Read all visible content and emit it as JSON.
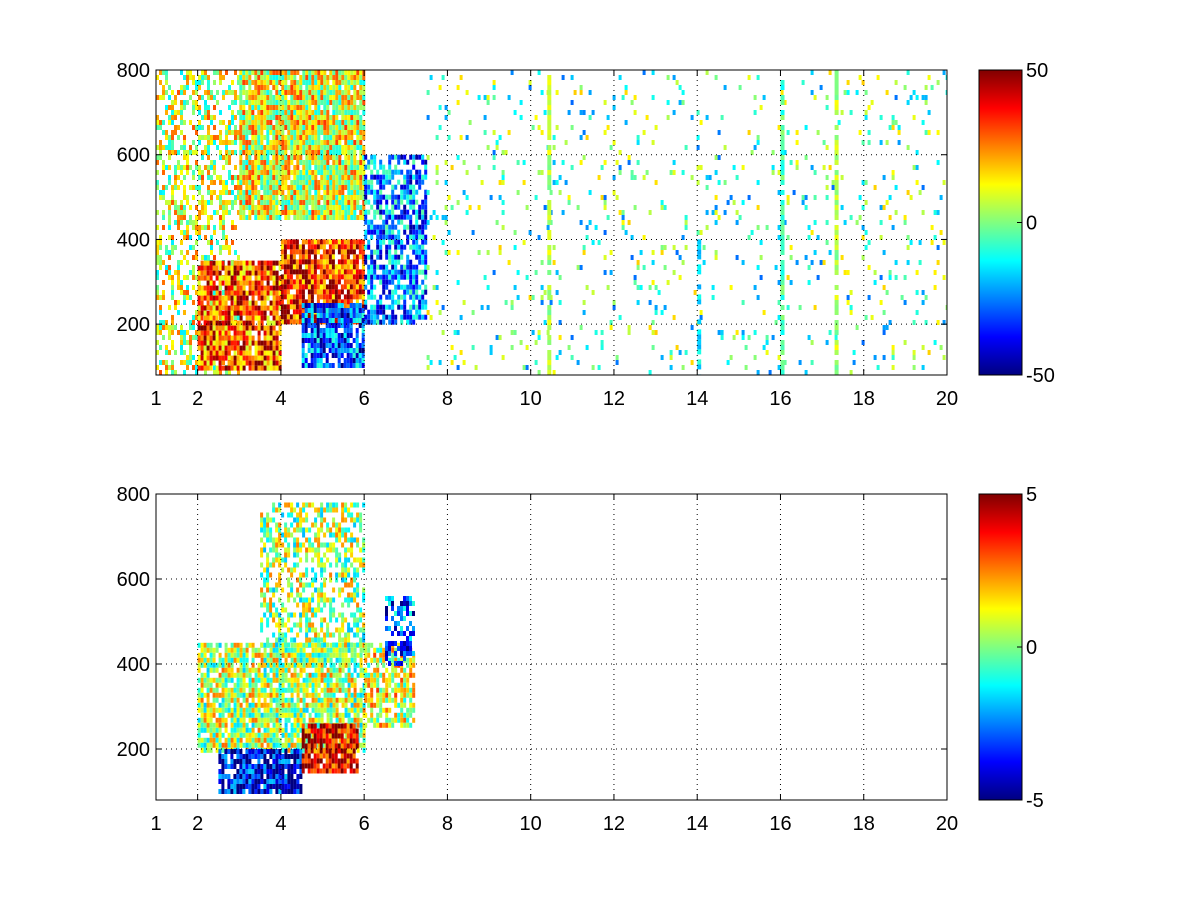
{
  "chart_data": [
    {
      "type": "heatmap",
      "title": "",
      "xlabel": "",
      "ylabel": "",
      "xlim": [
        1,
        20
      ],
      "ylim": [
        80,
        800
      ],
      "x_ticks": [
        1,
        2,
        4,
        6,
        8,
        10,
        12,
        14,
        16,
        18,
        20
      ],
      "y_ticks": [
        200,
        400,
        600,
        800
      ],
      "grid": true,
      "colormap": "jet",
      "clim": [
        -50,
        50
      ],
      "colorbar_ticks": [
        50,
        0,
        -50
      ],
      "regions": [
        {
          "x": [
            1.0,
            3.0
          ],
          "y": [
            80,
            800
          ],
          "value": 8,
          "density": 0.45
        },
        {
          "x": [
            3.0,
            6.0
          ],
          "y": [
            450,
            800
          ],
          "value": 10,
          "density": 0.95
        },
        {
          "x": [
            2.0,
            4.0
          ],
          "y": [
            100,
            350
          ],
          "value": 30,
          "density": 0.9
        },
        {
          "x": [
            4.0,
            6.0
          ],
          "y": [
            200,
            400
          ],
          "value": 35,
          "density": 0.9
        },
        {
          "x": [
            4.5,
            6.0
          ],
          "y": [
            100,
            250
          ],
          "value": -30,
          "density": 0.85
        },
        {
          "x": [
            6.0,
            7.5
          ],
          "y": [
            200,
            600
          ],
          "value": -25,
          "density": 0.7
        },
        {
          "x": [
            7.5,
            20.0
          ],
          "y": [
            80,
            800
          ],
          "value": -5,
          "density": 0.07
        }
      ],
      "streaks": [
        {
          "x": 10.4,
          "y": [
            80,
            800
          ],
          "value": 5
        },
        {
          "x": 14.0,
          "y": [
            80,
            400
          ],
          "value": -15
        },
        {
          "x": 16.0,
          "y": [
            80,
            800
          ],
          "value": -5
        },
        {
          "x": 17.3,
          "y": [
            80,
            800
          ],
          "value": 5
        }
      ]
    },
    {
      "type": "heatmap",
      "title": "",
      "xlabel": "",
      "ylabel": "",
      "xlim": [
        1,
        20
      ],
      "ylim": [
        80,
        800
      ],
      "x_ticks": [
        1,
        2,
        4,
        6,
        8,
        10,
        12,
        14,
        16,
        18,
        20
      ],
      "y_ticks": [
        200,
        400,
        600,
        800
      ],
      "grid": true,
      "colormap": "jet",
      "clim": [
        -5,
        5
      ],
      "colorbar_ticks": [
        5,
        0,
        -5
      ],
      "regions": [
        {
          "x": [
            2.0,
            6.0
          ],
          "y": [
            200,
            450
          ],
          "value": 0.5,
          "density": 0.85
        },
        {
          "x": [
            3.5,
            6.0
          ],
          "y": [
            450,
            780
          ],
          "value": 0.3,
          "density": 0.55
        },
        {
          "x": [
            2.5,
            4.5
          ],
          "y": [
            100,
            200
          ],
          "value": -4,
          "density": 0.85
        },
        {
          "x": [
            4.5,
            5.8
          ],
          "y": [
            150,
            260
          ],
          "value": 4,
          "density": 0.85
        },
        {
          "x": [
            6.0,
            7.2
          ],
          "y": [
            250,
            450
          ],
          "value": 1,
          "density": 0.7
        },
        {
          "x": [
            6.5,
            7.2
          ],
          "y": [
            400,
            560
          ],
          "value": -3,
          "density": 0.5
        }
      ],
      "streaks": []
    }
  ]
}
